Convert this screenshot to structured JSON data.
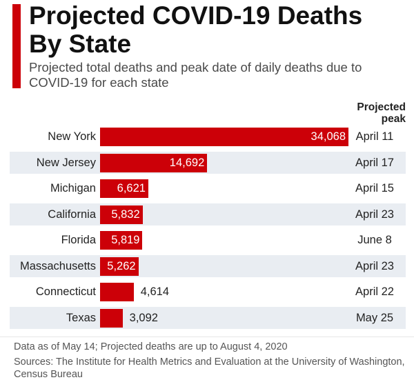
{
  "title": "Projected COVID-19 Deaths By State",
  "subtitle": "Projected total deaths and peak date of daily deaths due to COVID-19 for each state",
  "peak_header": "Projected peak",
  "note": "Data as of May 14; Projected deaths are up to August 4, 2020",
  "sources": "Sources: The Institute for Health Metrics and Evaluation at the University of Washington, Census Bureau",
  "colors": {
    "bar": "#cc0008",
    "row_shade": "#e9edf2"
  },
  "chart_data": {
    "type": "bar",
    "orientation": "horizontal",
    "title": "Projected COVID-19 Deaths By State",
    "subtitle": "Projected total deaths and peak date of daily deaths due to COVID-19 for each state",
    "xlabel": "",
    "ylabel": "",
    "categories": [
      "New York",
      "New Jersey",
      "Michigan",
      "California",
      "Florida",
      "Massachusetts",
      "Connecticut",
      "Texas"
    ],
    "values": [
      34068,
      14692,
      6621,
      5832,
      5819,
      5262,
      4614,
      3092
    ],
    "value_labels": [
      "34,068",
      "14,692",
      "6,621",
      "5,832",
      "5,819",
      "5,262",
      "4,614",
      "3,092"
    ],
    "peaks": [
      "April 11",
      "April 17",
      "April 15",
      "April 23",
      "June 8",
      "April 23",
      "April 22",
      "May 25"
    ],
    "xlim": [
      0,
      34068
    ],
    "grid": false,
    "legend": "none"
  }
}
